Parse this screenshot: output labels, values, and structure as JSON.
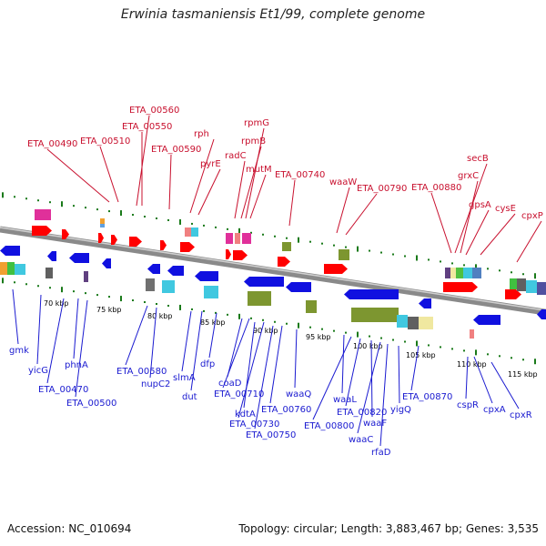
{
  "title": "Erwinia tasmaniensis Et1/99, complete genome",
  "accession": "Accession: NC_010694",
  "summary": "Topology: circular; Length: 3,883,467 bp; Genes: 3,535",
  "colors": {
    "top_labels": "#c8102e",
    "bottom_labels": "#1a1ad0",
    "backbone": "#8a8a8a",
    "forward_gene": "#ff0000",
    "reverse_gene": "#1010e0",
    "ticks": "#1a7a1a",
    "cog_olive": "#7d9630"
  },
  "scale": {
    "kbp_labels": [
      "70 kbp",
      "75 kbp",
      "80 kbp",
      "85 kbp",
      "90 kbp",
      "95 kbp",
      "100 kbp",
      "105 kbp",
      "110 kbp",
      "115 kbp"
    ]
  },
  "top_genes": [
    {
      "name": "ETA_00490"
    },
    {
      "name": "ETA_00510"
    },
    {
      "name": "ETA_00560"
    },
    {
      "name": "ETA_00550"
    },
    {
      "name": "ETA_00590"
    },
    {
      "name": "rph"
    },
    {
      "name": "pyrE"
    },
    {
      "name": "radC"
    },
    {
      "name": "rpmG"
    },
    {
      "name": "rpmB"
    },
    {
      "name": "mutM"
    },
    {
      "name": "ETA_00740"
    },
    {
      "name": "waaW"
    },
    {
      "name": "ETA_00790"
    },
    {
      "name": "ETA_00880"
    },
    {
      "name": "secB"
    },
    {
      "name": "grxC"
    },
    {
      "name": "gpsA"
    },
    {
      "name": "cysE"
    },
    {
      "name": "cpxP"
    }
  ],
  "bottom_genes": [
    {
      "name": "gmk"
    },
    {
      "name": "yicG"
    },
    {
      "name": "phnA"
    },
    {
      "name": "ETA_00470"
    },
    {
      "name": "ETA_00500"
    },
    {
      "name": "ETA_00580"
    },
    {
      "name": "nupC2"
    },
    {
      "name": "slmA"
    },
    {
      "name": "dut"
    },
    {
      "name": "dfp"
    },
    {
      "name": "coaD"
    },
    {
      "name": "ETA_00710"
    },
    {
      "name": "kdtA"
    },
    {
      "name": "ETA_00730"
    },
    {
      "name": "ETA_00750"
    },
    {
      "name": "ETA_00760"
    },
    {
      "name": "waaQ"
    },
    {
      "name": "waaL"
    },
    {
      "name": "ETA_00800"
    },
    {
      "name": "ETA_00820"
    },
    {
      "name": "waaF"
    },
    {
      "name": "waaC"
    },
    {
      "name": "rfaD"
    },
    {
      "name": "yigQ"
    },
    {
      "name": "ETA_00870"
    },
    {
      "name": "cspR"
    },
    {
      "name": "cpxA"
    },
    {
      "name": "cpxR"
    }
  ]
}
